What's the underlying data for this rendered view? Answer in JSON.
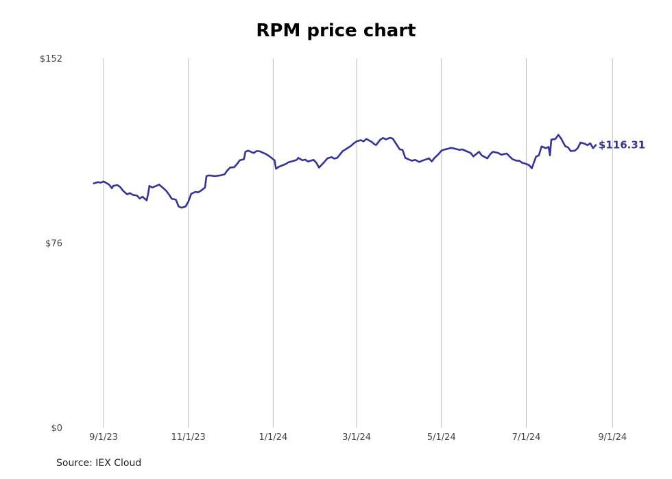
{
  "title": "RPM price chart",
  "source": "Source: IEX Cloud",
  "colors": {
    "line": "#333399",
    "grid": "#bbbbbb",
    "text": "#444444",
    "background": "#ffffff"
  },
  "chart_data": {
    "type": "line",
    "title": "RPM price chart",
    "xlabel": "",
    "ylabel": "",
    "grid": "vertical",
    "x_ticks": [
      "9/1/23",
      "11/1/23",
      "1/1/24",
      "3/1/24",
      "5/1/24",
      "7/1/24",
      "9/1/24"
    ],
    "y_ticks": [
      "$0",
      "$76",
      "$152"
    ],
    "ylim": [
      0,
      152
    ],
    "xlim": [
      "2023-08-01",
      "2024-09-05"
    ],
    "last_value_label": "$116.31",
    "series": [
      {
        "values": [
          [
            "2023-08-25",
            100.5
          ],
          [
            "2023-08-28",
            101.0
          ],
          [
            "2023-08-30",
            100.8
          ],
          [
            "2023-09-01",
            101.3
          ],
          [
            "2023-09-05",
            100.0
          ],
          [
            "2023-09-07",
            98.5
          ],
          [
            "2023-09-08",
            99.5
          ],
          [
            "2023-09-11",
            99.8
          ],
          [
            "2023-09-13",
            99.0
          ],
          [
            "2023-09-15",
            97.5
          ],
          [
            "2023-09-18",
            96.0
          ],
          [
            "2023-09-20",
            96.5
          ],
          [
            "2023-09-22",
            95.8
          ],
          [
            "2023-09-25",
            95.5
          ],
          [
            "2023-09-27",
            94.3
          ],
          [
            "2023-09-29",
            95.0
          ],
          [
            "2023-10-02",
            93.5
          ],
          [
            "2023-10-03",
            96.0
          ],
          [
            "2023-10-04",
            99.5
          ],
          [
            "2023-10-06",
            98.8
          ],
          [
            "2023-10-09",
            99.5
          ],
          [
            "2023-10-11",
            100.0
          ],
          [
            "2023-10-13",
            99.0
          ],
          [
            "2023-10-16",
            97.5
          ],
          [
            "2023-10-18",
            96.0
          ],
          [
            "2023-10-20",
            94.2
          ],
          [
            "2023-10-23",
            93.8
          ],
          [
            "2023-10-25",
            91.0
          ],
          [
            "2023-10-27",
            90.5
          ],
          [
            "2023-10-30",
            91.0
          ],
          [
            "2023-11-01",
            93.0
          ],
          [
            "2023-11-03",
            96.2
          ],
          [
            "2023-11-06",
            97.0
          ],
          [
            "2023-11-08",
            96.8
          ],
          [
            "2023-11-10",
            97.5
          ],
          [
            "2023-11-13",
            98.8
          ],
          [
            "2023-11-14",
            103.5
          ],
          [
            "2023-11-16",
            103.8
          ],
          [
            "2023-11-20",
            103.5
          ],
          [
            "2023-11-24",
            103.8
          ],
          [
            "2023-11-27",
            104.2
          ],
          [
            "2023-11-29",
            105.8
          ],
          [
            "2023-12-01",
            107.0
          ],
          [
            "2023-12-04",
            107.2
          ],
          [
            "2023-12-06",
            108.5
          ],
          [
            "2023-12-08",
            110.0
          ],
          [
            "2023-12-11",
            110.5
          ],
          [
            "2023-12-12",
            113.5
          ],
          [
            "2023-12-14",
            114.0
          ],
          [
            "2023-12-18",
            113.0
          ],
          [
            "2023-12-20",
            113.8
          ],
          [
            "2023-12-22",
            113.8
          ],
          [
            "2023-12-27",
            112.5
          ],
          [
            "2023-12-29",
            111.8
          ],
          [
            "2024-01-02",
            110.0
          ],
          [
            "2024-01-03",
            106.5
          ],
          [
            "2024-01-05",
            107.3
          ],
          [
            "2024-01-08",
            108.0
          ],
          [
            "2024-01-10",
            108.5
          ],
          [
            "2024-01-12",
            109.2
          ],
          [
            "2024-01-16",
            109.8
          ],
          [
            "2024-01-18",
            110.2
          ],
          [
            "2024-01-19",
            111.0
          ],
          [
            "2024-01-22",
            110.0
          ],
          [
            "2024-01-24",
            110.3
          ],
          [
            "2024-01-26",
            109.5
          ],
          [
            "2024-01-30",
            110.2
          ],
          [
            "2024-02-01",
            109.0
          ],
          [
            "2024-02-03",
            107.0
          ],
          [
            "2024-02-07",
            109.5
          ],
          [
            "2024-02-09",
            110.8
          ],
          [
            "2024-02-12",
            111.3
          ],
          [
            "2024-02-14",
            110.7
          ],
          [
            "2024-02-16",
            111.0
          ],
          [
            "2024-02-20",
            113.8
          ],
          [
            "2024-02-22",
            114.5
          ],
          [
            "2024-02-26",
            116.0
          ],
          [
            "2024-02-28",
            117.0
          ],
          [
            "2024-03-01",
            117.8
          ],
          [
            "2024-03-04",
            118.3
          ],
          [
            "2024-03-06",
            117.8
          ],
          [
            "2024-03-08",
            118.8
          ],
          [
            "2024-03-12",
            117.5
          ],
          [
            "2024-03-14",
            116.5
          ],
          [
            "2024-03-15",
            116.3
          ],
          [
            "2024-03-18",
            118.5
          ],
          [
            "2024-03-20",
            119.2
          ],
          [
            "2024-03-22",
            118.6
          ],
          [
            "2024-03-25",
            119.3
          ],
          [
            "2024-03-27",
            118.9
          ],
          [
            "2024-03-28",
            118.0
          ],
          [
            "2024-04-01",
            114.5
          ],
          [
            "2024-04-03",
            114.3
          ],
          [
            "2024-04-05",
            111.0
          ],
          [
            "2024-04-08",
            110.2
          ],
          [
            "2024-04-10",
            109.8
          ],
          [
            "2024-04-12",
            110.2
          ],
          [
            "2024-04-15",
            109.3
          ],
          [
            "2024-04-17",
            109.8
          ],
          [
            "2024-04-19",
            110.2
          ],
          [
            "2024-04-22",
            110.8
          ],
          [
            "2024-04-24",
            109.5
          ],
          [
            "2024-04-26",
            111.0
          ],
          [
            "2024-04-29",
            112.6
          ],
          [
            "2024-05-01",
            114.0
          ],
          [
            "2024-05-03",
            114.4
          ],
          [
            "2024-05-06",
            114.8
          ],
          [
            "2024-05-08",
            115.1
          ],
          [
            "2024-05-10",
            114.9
          ],
          [
            "2024-05-14",
            114.3
          ],
          [
            "2024-05-16",
            114.5
          ],
          [
            "2024-05-20",
            113.5
          ],
          [
            "2024-05-22",
            113.0
          ],
          [
            "2024-05-24",
            111.6
          ],
          [
            "2024-05-28",
            113.5
          ],
          [
            "2024-05-30",
            112.0
          ],
          [
            "2024-06-03",
            110.8
          ],
          [
            "2024-06-05",
            112.5
          ],
          [
            "2024-06-07",
            113.5
          ],
          [
            "2024-06-11",
            113.0
          ],
          [
            "2024-06-13",
            112.3
          ],
          [
            "2024-06-17",
            112.8
          ],
          [
            "2024-06-19",
            111.6
          ],
          [
            "2024-06-21",
            110.5
          ],
          [
            "2024-06-24",
            109.8
          ],
          [
            "2024-06-26",
            109.8
          ],
          [
            "2024-06-28",
            109.0
          ],
          [
            "2024-07-01",
            108.5
          ],
          [
            "2024-07-03",
            108.0
          ],
          [
            "2024-07-05",
            106.7
          ],
          [
            "2024-07-08",
            111.5
          ],
          [
            "2024-07-10",
            112.0
          ],
          [
            "2024-07-12",
            115.7
          ],
          [
            "2024-07-15",
            115.0
          ],
          [
            "2024-07-17",
            115.5
          ],
          [
            "2024-07-18",
            112.0
          ],
          [
            "2024-07-19",
            118.5
          ],
          [
            "2024-07-22",
            118.8
          ],
          [
            "2024-07-24",
            120.5
          ],
          [
            "2024-07-26",
            119.0
          ],
          [
            "2024-07-29",
            115.8
          ],
          [
            "2024-07-31",
            115.3
          ],
          [
            "2024-08-02",
            113.8
          ],
          [
            "2024-08-05",
            114.0
          ],
          [
            "2024-08-07",
            115.0
          ],
          [
            "2024-08-09",
            117.3
          ],
          [
            "2024-08-12",
            116.8
          ],
          [
            "2024-08-14",
            116.2
          ],
          [
            "2024-08-16",
            117.0
          ],
          [
            "2024-08-18",
            115.0
          ],
          [
            "2024-08-20",
            116.31
          ]
        ]
      }
    ]
  }
}
